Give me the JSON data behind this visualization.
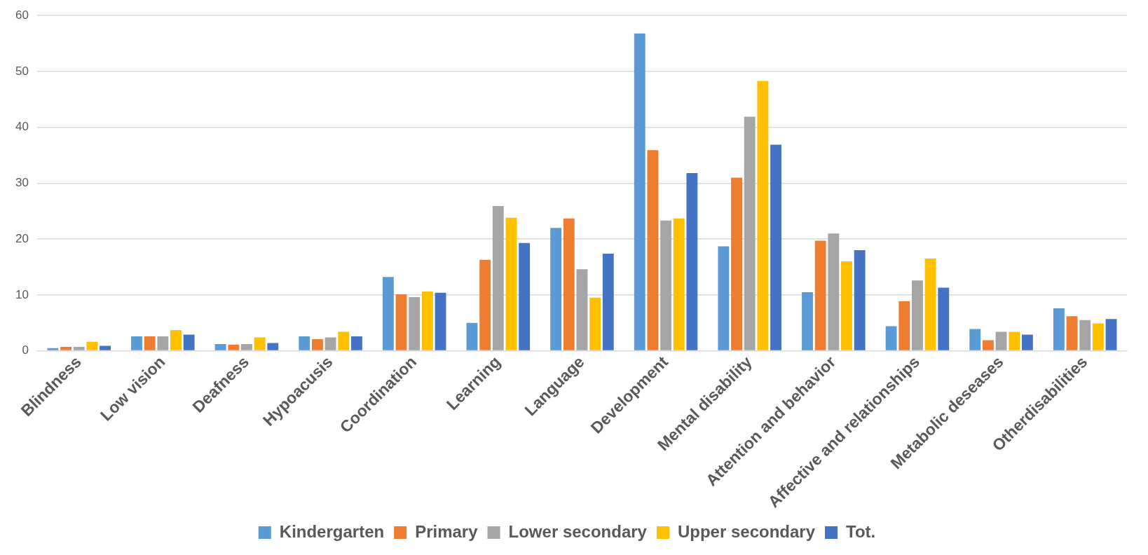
{
  "chart_data": {
    "type": "bar",
    "categories": [
      "Blindness",
      "Low vision",
      "Deafness",
      "Hypoacusis",
      "Coordination",
      "Learning",
      "Language",
      "Development",
      "Mental disability",
      "Attention and behavior",
      "Affective and relationships",
      "Metabolic deseases",
      "Otherdisabilities"
    ],
    "series": [
      {
        "name": "Kindergarten",
        "color": "#5b9bd5",
        "values": [
          0.5,
          2.6,
          1.2,
          2.6,
          13.2,
          5.0,
          22.0,
          56.8,
          18.7,
          10.5,
          4.4,
          3.9,
          7.6
        ]
      },
      {
        "name": "Primary",
        "color": "#ed7d31",
        "values": [
          0.7,
          2.6,
          1.1,
          2.1,
          10.1,
          16.3,
          23.7,
          35.9,
          31.0,
          19.7,
          8.9,
          1.9,
          6.2
        ]
      },
      {
        "name": "Lower secondary",
        "color": "#a5a5a5",
        "values": [
          0.7,
          2.6,
          1.2,
          2.4,
          9.6,
          25.9,
          14.6,
          23.3,
          41.9,
          21.0,
          12.6,
          3.4,
          5.5
        ]
      },
      {
        "name": "Upper secondary",
        "color": "#ffc000",
        "values": [
          1.6,
          3.7,
          2.4,
          3.4,
          10.6,
          23.8,
          9.5,
          23.7,
          48.3,
          16.0,
          16.5,
          3.4,
          4.9
        ]
      },
      {
        "name": "Tot.",
        "color": "#4472c4",
        "values": [
          0.9,
          2.9,
          1.4,
          2.6,
          10.4,
          19.3,
          17.4,
          31.8,
          36.9,
          18.0,
          11.3,
          2.9,
          5.7
        ]
      }
    ],
    "ylim": [
      0,
      60
    ],
    "yticks": [
      0,
      10,
      20,
      30,
      40,
      50,
      60
    ],
    "grid": "y",
    "legend": "bottom"
  }
}
